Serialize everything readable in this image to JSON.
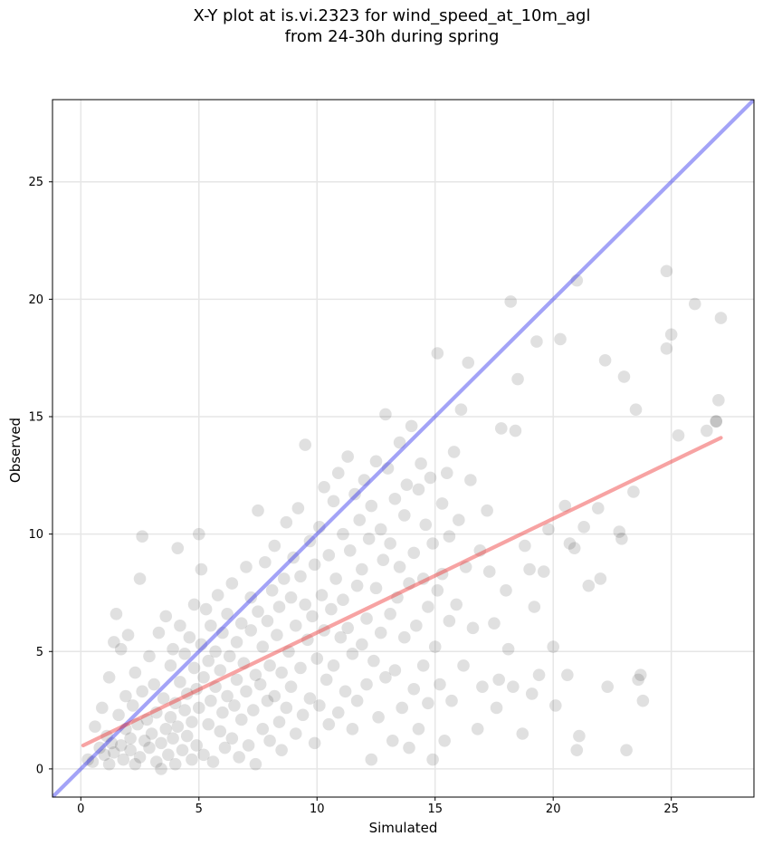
{
  "header": {
    "title_line1": "X-Y plot at is.vi.2323 for wind_speed_at_10m_agl",
    "title_line2": "from 24-30h during spring"
  },
  "chart_data": {
    "type": "scatter",
    "title": "X-Y plot at is.vi.2323 for wind_speed_at_10m_agl\nfrom 24-30h during spring",
    "xlabel": "Simulated",
    "ylabel": "Observed",
    "xlim": [
      -1.2,
      28.5
    ],
    "ylim": [
      -1.2,
      28.5
    ],
    "xticks": [
      0,
      5,
      10,
      15,
      20,
      25
    ],
    "yticks": [
      0,
      5,
      10,
      15,
      20,
      25
    ],
    "grid": true,
    "colors": {
      "points": "#000000",
      "identity_line": "#3333ee",
      "regression_line": "#ee3333"
    },
    "reference_lines": [
      {
        "kind": "identity",
        "x": [
          -1.2,
          28.5
        ],
        "y": [
          -1.2,
          28.5
        ]
      },
      {
        "kind": "regression",
        "x": [
          0.1,
          27.1
        ],
        "y": [
          1.0,
          14.1
        ]
      }
    ],
    "points": [
      [
        0.3,
        0.4
      ],
      [
        0.5,
        0.3
      ],
      [
        0.6,
        1.8
      ],
      [
        0.8,
        0.9
      ],
      [
        0.9,
        2.6
      ],
      [
        1.0,
        0.6
      ],
      [
        1.1,
        1.4
      ],
      [
        1.2,
        0.2
      ],
      [
        1.2,
        3.9
      ],
      [
        1.3,
        1.1
      ],
      [
        1.4,
        5.4
      ],
      [
        1.4,
        0.7
      ],
      [
        1.5,
        6.6
      ],
      [
        1.6,
        2.3
      ],
      [
        1.7,
        1.0
      ],
      [
        1.7,
        5.1
      ],
      [
        1.8,
        0.4
      ],
      [
        1.9,
        1.7
      ],
      [
        1.9,
        3.1
      ],
      [
        2.0,
        5.7
      ],
      [
        2.1,
        0.8
      ],
      [
        2.1,
        1.3
      ],
      [
        2.2,
        2.7
      ],
      [
        2.3,
        0.2
      ],
      [
        2.3,
        4.1
      ],
      [
        2.4,
        1.9
      ],
      [
        2.5,
        8.1
      ],
      [
        2.5,
        0.5
      ],
      [
        2.6,
        9.9
      ],
      [
        2.6,
        3.3
      ],
      [
        2.7,
        1.2
      ],
      [
        2.8,
        2.1
      ],
      [
        2.9,
        4.8
      ],
      [
        2.9,
        0.9
      ],
      [
        3.0,
        1.5
      ],
      [
        3.1,
        3.6
      ],
      [
        3.2,
        0.3
      ],
      [
        3.2,
        2.4
      ],
      [
        3.3,
        5.8
      ],
      [
        3.4,
        1.1
      ],
      [
        3.4,
        0.0
      ],
      [
        3.5,
        3.0
      ],
      [
        3.6,
        1.7
      ],
      [
        3.6,
        6.5
      ],
      [
        3.7,
        0.6
      ],
      [
        3.8,
        2.2
      ],
      [
        3.8,
        4.4
      ],
      [
        3.9,
        1.3
      ],
      [
        3.9,
        5.1
      ],
      [
        4.0,
        0.2
      ],
      [
        4.0,
        2.8
      ],
      [
        4.1,
        9.4
      ],
      [
        4.1,
        1.8
      ],
      [
        4.2,
        3.7
      ],
      [
        4.2,
        6.1
      ],
      [
        4.3,
        0.8
      ],
      [
        4.4,
        2.5
      ],
      [
        4.4,
        4.9
      ],
      [
        4.5,
        1.4
      ],
      [
        4.5,
        3.2
      ],
      [
        4.6,
        5.6
      ],
      [
        4.7,
        0.4
      ],
      [
        4.7,
        2.0
      ],
      [
        4.8,
        4.3
      ],
      [
        4.8,
        7.0
      ],
      [
        4.9,
        1.0
      ],
      [
        4.9,
        3.4
      ],
      [
        5.0,
        10.0
      ],
      [
        5.0,
        2.6
      ],
      [
        5.1,
        5.3
      ],
      [
        5.1,
        8.5
      ],
      [
        5.2,
        0.6
      ],
      [
        5.2,
        3.9
      ],
      [
        5.3,
        6.8
      ],
      [
        5.4,
        1.9
      ],
      [
        5.4,
        4.6
      ],
      [
        5.5,
        2.9
      ],
      [
        5.5,
        6.1
      ],
      [
        5.6,
        0.3
      ],
      [
        5.7,
        3.5
      ],
      [
        5.7,
        5.0
      ],
      [
        5.8,
        7.4
      ],
      [
        5.9,
        1.6
      ],
      [
        5.9,
        4.2
      ],
      [
        6.0,
        2.4
      ],
      [
        6.0,
        5.8
      ],
      [
        6.1,
        0.9
      ],
      [
        6.2,
        3.1
      ],
      [
        6.2,
        6.6
      ],
      [
        6.3,
        4.8
      ],
      [
        6.4,
        1.3
      ],
      [
        6.4,
        7.9
      ],
      [
        6.5,
        2.7
      ],
      [
        6.6,
        5.4
      ],
      [
        6.6,
        3.8
      ],
      [
        6.7,
        0.5
      ],
      [
        6.8,
        6.2
      ],
      [
        6.8,
        2.1
      ],
      [
        6.9,
        4.5
      ],
      [
        7.0,
        8.6
      ],
      [
        7.0,
        3.3
      ],
      [
        7.1,
        1.0
      ],
      [
        7.2,
        5.9
      ],
      [
        7.2,
        7.3
      ],
      [
        7.3,
        2.5
      ],
      [
        7.4,
        4.0
      ],
      [
        7.4,
        0.2
      ],
      [
        7.5,
        6.7
      ],
      [
        7.5,
        11.0
      ],
      [
        7.6,
        3.6
      ],
      [
        7.7,
        1.7
      ],
      [
        7.7,
        5.2
      ],
      [
        7.8,
        8.8
      ],
      [
        7.9,
        2.9
      ],
      [
        7.9,
        6.3
      ],
      [
        8.0,
        4.4
      ],
      [
        8.0,
        1.2
      ],
      [
        8.1,
        7.6
      ],
      [
        8.2,
        3.1
      ],
      [
        8.2,
        9.5
      ],
      [
        8.3,
        5.7
      ],
      [
        8.4,
        2.0
      ],
      [
        8.4,
        6.9
      ],
      [
        8.5,
        0.8
      ],
      [
        8.5,
        4.1
      ],
      [
        8.6,
        8.1
      ],
      [
        8.7,
        10.5
      ],
      [
        8.7,
        2.6
      ],
      [
        8.8,
        5.0
      ],
      [
        8.9,
        7.3
      ],
      [
        8.9,
        3.5
      ],
      [
        9.0,
        9.0
      ],
      [
        9.1,
        1.5
      ],
      [
        9.1,
        6.1
      ],
      [
        9.2,
        11.1
      ],
      [
        9.3,
        4.3
      ],
      [
        9.3,
        8.2
      ],
      [
        9.4,
        2.3
      ],
      [
        9.5,
        7.0
      ],
      [
        9.5,
        13.8
      ],
      [
        9.6,
        5.5
      ],
      [
        9.7,
        3.0
      ],
      [
        9.7,
        9.7
      ],
      [
        9.8,
        6.5
      ],
      [
        9.9,
        1.1
      ],
      [
        9.9,
        8.7
      ],
      [
        10.0,
        4.7
      ],
      [
        10.1,
        10.3
      ],
      [
        10.1,
        2.7
      ],
      [
        10.2,
        7.4
      ],
      [
        10.3,
        5.9
      ],
      [
        10.3,
        12.0
      ],
      [
        10.4,
        3.8
      ],
      [
        10.5,
        9.1
      ],
      [
        10.5,
        1.9
      ],
      [
        10.6,
        6.8
      ],
      [
        10.7,
        11.4
      ],
      [
        10.7,
        4.4
      ],
      [
        10.8,
        8.1
      ],
      [
        10.9,
        2.4
      ],
      [
        10.9,
        12.6
      ],
      [
        11.0,
        5.6
      ],
      [
        11.1,
        10.0
      ],
      [
        11.1,
        7.2
      ],
      [
        11.2,
        3.3
      ],
      [
        11.3,
        13.3
      ],
      [
        11.3,
        6.0
      ],
      [
        11.4,
        9.3
      ],
      [
        11.5,
        1.7
      ],
      [
        11.5,
        4.9
      ],
      [
        11.6,
        11.7
      ],
      [
        11.7,
        7.8
      ],
      [
        11.7,
        2.9
      ],
      [
        11.8,
        10.6
      ],
      [
        11.9,
        5.3
      ],
      [
        11.9,
        8.5
      ],
      [
        12.0,
        12.3
      ],
      [
        12.1,
        3.6
      ],
      [
        12.1,
        6.4
      ],
      [
        12.2,
        9.8
      ],
      [
        12.3,
        0.4
      ],
      [
        12.3,
        11.2
      ],
      [
        12.4,
        4.6
      ],
      [
        12.5,
        7.7
      ],
      [
        12.5,
        13.1
      ],
      [
        12.6,
        2.2
      ],
      [
        12.7,
        10.2
      ],
      [
        12.7,
        5.8
      ],
      [
        12.8,
        8.9
      ],
      [
        12.9,
        15.1
      ],
      [
        12.9,
        3.9
      ],
      [
        13.0,
        12.8
      ],
      [
        13.1,
        6.6
      ],
      [
        13.1,
        9.6
      ],
      [
        13.2,
        1.2
      ],
      [
        13.3,
        11.5
      ],
      [
        13.3,
        4.2
      ],
      [
        13.4,
        7.3
      ],
      [
        13.5,
        13.9
      ],
      [
        13.5,
        8.6
      ],
      [
        13.6,
        2.6
      ],
      [
        13.7,
        10.8
      ],
      [
        13.7,
        5.6
      ],
      [
        13.8,
        12.1
      ],
      [
        13.9,
        0.9
      ],
      [
        13.9,
        7.9
      ],
      [
        14.0,
        14.6
      ],
      [
        14.1,
        3.4
      ],
      [
        14.1,
        9.2
      ],
      [
        14.2,
        6.1
      ],
      [
        14.3,
        11.9
      ],
      [
        14.3,
        1.7
      ],
      [
        14.4,
        13.0
      ],
      [
        14.5,
        8.1
      ],
      [
        14.5,
        4.4
      ],
      [
        14.6,
        10.4
      ],
      [
        14.7,
        6.9
      ],
      [
        14.7,
        2.8
      ],
      [
        14.8,
        12.4
      ],
      [
        14.9,
        0.4
      ],
      [
        14.9,
        9.6
      ],
      [
        15.0,
        5.2
      ],
      [
        15.1,
        7.6
      ],
      [
        15.1,
        17.7
      ],
      [
        15.2,
        3.6
      ],
      [
        15.3,
        11.3
      ],
      [
        15.3,
        8.3
      ],
      [
        15.4,
        1.2
      ],
      [
        15.5,
        12.6
      ],
      [
        15.6,
        6.3
      ],
      [
        15.6,
        9.9
      ],
      [
        15.7,
        2.9
      ],
      [
        15.8,
        13.5
      ],
      [
        15.9,
        7.0
      ],
      [
        16.0,
        10.6
      ],
      [
        16.1,
        15.3
      ],
      [
        16.2,
        4.4
      ],
      [
        16.3,
        8.6
      ],
      [
        16.4,
        17.3
      ],
      [
        16.5,
        12.3
      ],
      [
        16.6,
        6.0
      ],
      [
        16.8,
        1.7
      ],
      [
        16.9,
        9.3
      ],
      [
        17.0,
        3.5
      ],
      [
        17.2,
        11.0
      ],
      [
        17.3,
        8.4
      ],
      [
        17.5,
        6.2
      ],
      [
        17.6,
        2.6
      ],
      [
        17.7,
        3.8
      ],
      [
        17.8,
        14.5
      ],
      [
        18.0,
        7.6
      ],
      [
        18.1,
        5.1
      ],
      [
        18.2,
        19.9
      ],
      [
        18.3,
        3.5
      ],
      [
        18.4,
        14.4
      ],
      [
        18.5,
        16.6
      ],
      [
        18.7,
        1.5
      ],
      [
        18.8,
        9.5
      ],
      [
        19.0,
        8.5
      ],
      [
        19.1,
        3.2
      ],
      [
        19.2,
        6.9
      ],
      [
        19.3,
        18.2
      ],
      [
        19.4,
        4.0
      ],
      [
        19.6,
        8.4
      ],
      [
        19.8,
        10.2
      ],
      [
        20.0,
        5.2
      ],
      [
        20.1,
        2.7
      ],
      [
        20.3,
        18.3
      ],
      [
        20.5,
        11.2
      ],
      [
        20.6,
        4.0
      ],
      [
        20.7,
        9.6
      ],
      [
        20.9,
        9.4
      ],
      [
        21.0,
        20.8
      ],
      [
        21.0,
        0.8
      ],
      [
        21.1,
        1.4
      ],
      [
        21.3,
        10.3
      ],
      [
        21.5,
        7.8
      ],
      [
        21.9,
        11.1
      ],
      [
        22.0,
        8.1
      ],
      [
        22.2,
        17.4
      ],
      [
        22.3,
        3.5
      ],
      [
        22.8,
        10.1
      ],
      [
        22.9,
        9.8
      ],
      [
        23.0,
        16.7
      ],
      [
        23.1,
        0.8
      ],
      [
        23.4,
        11.8
      ],
      [
        23.5,
        15.3
      ],
      [
        23.6,
        3.8
      ],
      [
        23.7,
        4.0
      ],
      [
        23.8,
        2.9
      ],
      [
        24.8,
        21.2
      ],
      [
        24.8,
        17.9
      ],
      [
        25.0,
        18.5
      ],
      [
        25.3,
        14.2
      ],
      [
        26.0,
        19.8
      ],
      [
        26.5,
        14.4
      ],
      [
        26.9,
        14.8
      ],
      [
        27.0,
        15.7
      ],
      [
        27.1,
        19.2
      ],
      [
        26.9,
        14.8
      ]
    ]
  }
}
